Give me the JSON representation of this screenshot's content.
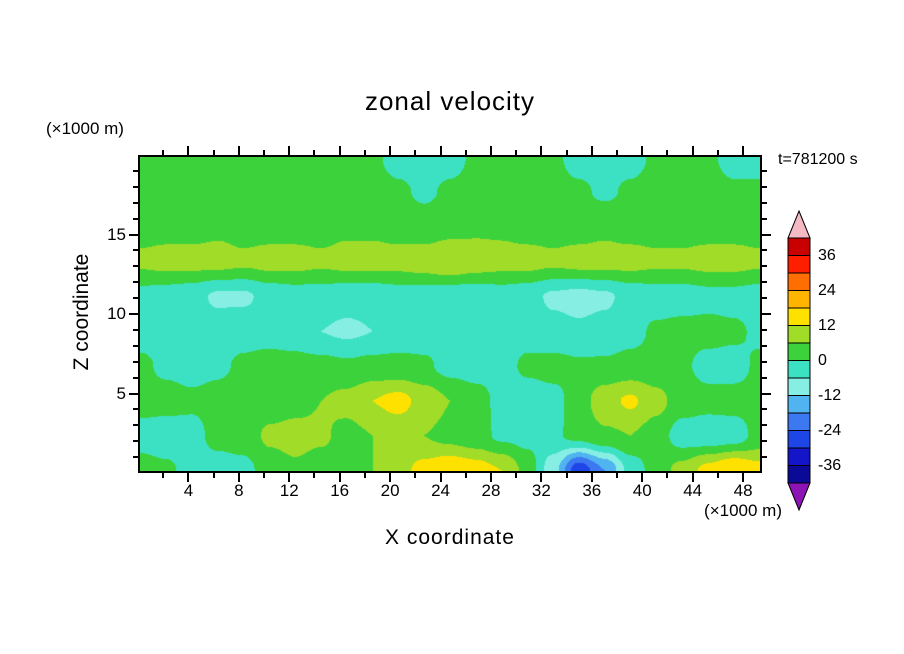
{
  "figure": {
    "background": "#ffffff"
  },
  "chart_data": {
    "type": "heatmap",
    "subtype": "filled-contour",
    "title": "zonal velocity",
    "annotation": "t=781200 s",
    "xlabel": "X coordinate",
    "ylabel": "Z coordinate",
    "x_unit_label": "(×1000 m)",
    "y_unit_label": "(×1000 m)",
    "x_range": [
      0,
      49.5
    ],
    "z_range": [
      0,
      20
    ],
    "x_major_ticks": [
      4,
      8,
      12,
      16,
      20,
      24,
      28,
      32,
      36,
      40,
      44,
      48
    ],
    "x_minor_step": 2,
    "z_major_ticks": [
      5,
      10,
      15
    ],
    "z_minor_step": 1,
    "contour_interval": 6,
    "levels": [
      -42,
      -36,
      -30,
      -24,
      -18,
      -12,
      -6,
      0,
      6,
      12,
      18,
      24,
      30,
      36,
      42
    ],
    "palette": [
      "#0a0a96",
      "#1414c8",
      "#1e46e6",
      "#3c78f0",
      "#50b4f0",
      "#87eee4",
      "#3ce1c3",
      "#3cd23c",
      "#a0dc28",
      "#ffe100",
      "#ffb400",
      "#ff6e00",
      "#ff1e00",
      "#c80000"
    ],
    "below_color": "#8c14b4",
    "above_color": "#f5b9c3",
    "colorbar_labels": [
      36,
      24,
      12,
      0,
      -12,
      -24,
      -36
    ],
    "axis_color": "#000000",
    "grid": {
      "nx": 25,
      "nz": 10,
      "order": "rows-top-to-bottom",
      "values": [
        [
          2,
          2,
          2,
          2,
          2,
          2,
          2,
          2,
          2,
          1,
          -2,
          -3,
          -2,
          1,
          2,
          2,
          1,
          -2,
          -3,
          -2,
          1,
          2,
          1,
          -2,
          -2
        ],
        [
          3,
          3,
          3,
          2,
          2,
          3,
          3,
          3,
          2,
          2,
          1,
          -1,
          1,
          2,
          3,
          3,
          2,
          1,
          -1,
          1,
          2,
          3,
          2,
          1,
          1
        ],
        [
          4,
          4,
          4,
          5,
          4,
          4,
          4,
          4,
          5,
          5,
          4,
          3,
          4,
          5,
          5,
          4,
          4,
          4,
          5,
          4,
          4,
          4,
          4,
          4,
          4
        ],
        [
          7,
          8,
          8,
          8,
          7,
          8,
          8,
          7,
          8,
          8,
          8,
          9,
          11,
          9,
          8,
          8,
          7,
          8,
          8,
          8,
          7,
          7,
          8,
          8,
          7
        ],
        [
          -2,
          -3,
          -4,
          -7,
          -7,
          -4,
          -3,
          -3,
          -4,
          -4,
          -3,
          -3,
          -4,
          -4,
          -3,
          -4,
          -7,
          -8,
          -7,
          -4,
          -3,
          -3,
          -2,
          -2,
          -3
        ],
        [
          -2,
          -2,
          -3,
          -3,
          -2,
          -2,
          -3,
          -6,
          -7,
          -6,
          -4,
          -3,
          -2,
          -3,
          -3,
          -2,
          -4,
          -5,
          -4,
          -2,
          1,
          2,
          2,
          1,
          -1
        ],
        [
          1,
          -1,
          -2,
          -1,
          1,
          2,
          2,
          2,
          1,
          2,
          2,
          1,
          -2,
          -3,
          -2,
          1,
          2,
          1,
          1,
          2,
          2,
          1,
          -2,
          -2,
          1
        ],
        [
          2,
          2,
          1,
          2,
          3,
          3,
          4,
          6,
          8,
          12,
          14,
          10,
          6,
          3,
          -2,
          -3,
          -2,
          3,
          10,
          13,
          8,
          3,
          2,
          2,
          2
        ],
        [
          -2,
          -3,
          -2,
          2,
          3,
          7,
          8,
          7,
          4,
          6,
          8,
          6,
          4,
          2,
          -1,
          -2,
          -1,
          2,
          5,
          6,
          3,
          -3,
          -4,
          -3,
          2
        ],
        [
          2,
          1,
          -2,
          -3,
          -2,
          3,
          5,
          3,
          2,
          6,
          10,
          14,
          17,
          15,
          12,
          4,
          -10,
          -28,
          -18,
          -4,
          3,
          8,
          14,
          18,
          14
        ]
      ]
    }
  }
}
